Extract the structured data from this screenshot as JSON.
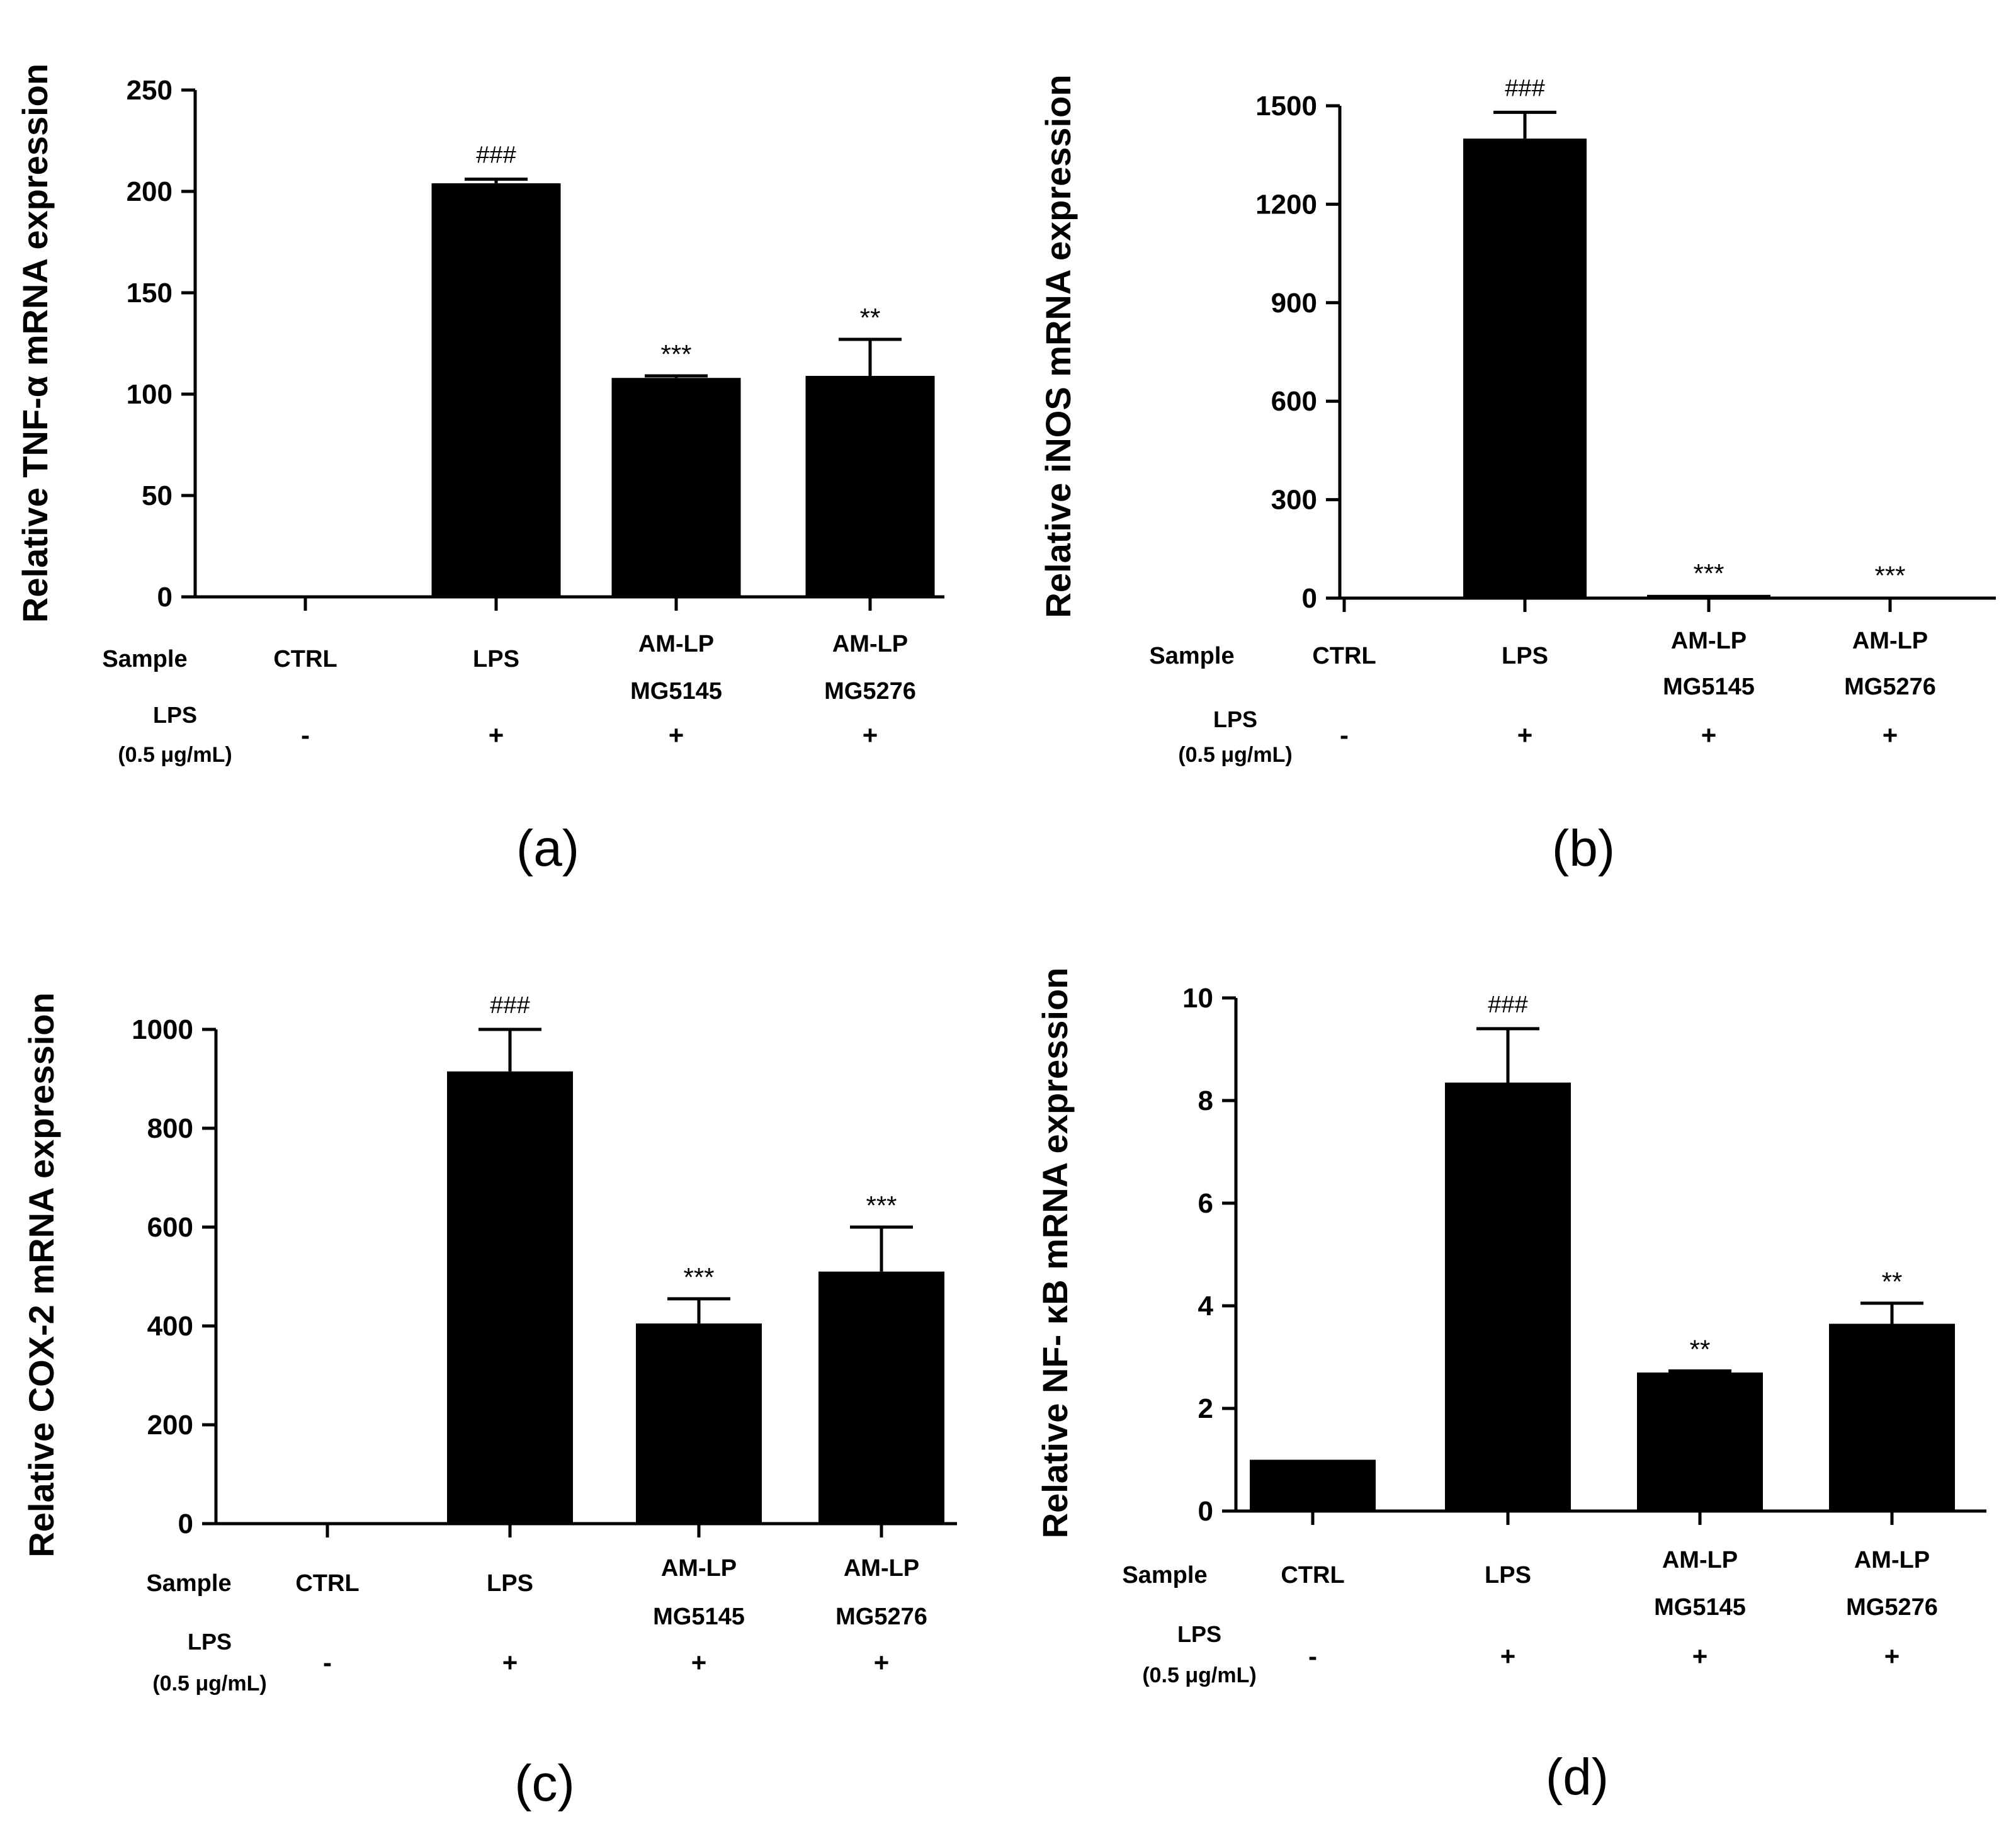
{
  "figure": {
    "colors": {
      "bar": "#000000",
      "axis": "#000000",
      "background": "#ffffff",
      "text": "#000000"
    },
    "row_labels": {
      "sample": "Sample",
      "lps_line1": "LPS",
      "lps_line2": "(0.5 μg/mL)"
    }
  },
  "chart_data": [
    {
      "panel": "(a)",
      "type": "bar",
      "ylabel": "Relative TNF-α mRNA expression",
      "ylim": [
        0,
        250
      ],
      "yticks": [
        0,
        50,
        100,
        150,
        200,
        250
      ],
      "categories": [
        [
          "CTRL"
        ],
        [
          "LPS"
        ],
        [
          "AM-LP",
          "MG5145"
        ],
        [
          "AM-LP",
          "MG5276"
        ]
      ],
      "lps": [
        "-",
        "+",
        "+",
        "+"
      ],
      "values": [
        0,
        204,
        108,
        109
      ],
      "errors": [
        0,
        2,
        1,
        18
      ],
      "significance": [
        "",
        "###",
        "***",
        "**"
      ]
    },
    {
      "panel": "(b)",
      "type": "bar",
      "ylabel": "Relative iNOS mRNA expression",
      "ylim": [
        0,
        1500
      ],
      "yticks": [
        0,
        300,
        600,
        900,
        1200,
        1500
      ],
      "categories": [
        [
          "CTRL"
        ],
        [
          "LPS"
        ],
        [
          "AM-LP",
          "MG5145"
        ],
        [
          "AM-LP",
          "MG5276"
        ]
      ],
      "lps": [
        "-",
        "+",
        "+",
        "+"
      ],
      "values": [
        0,
        1400,
        10,
        3
      ],
      "errors": [
        0,
        80,
        0,
        0
      ],
      "significance": [
        "",
        "###",
        "***",
        "***"
      ]
    },
    {
      "panel": "(c)",
      "type": "bar",
      "ylabel": "Relative COX-2 mRNA expression",
      "ylim": [
        0,
        1000
      ],
      "yticks": [
        0,
        200,
        400,
        600,
        800,
        1000
      ],
      "categories": [
        [
          "CTRL"
        ],
        [
          "LPS"
        ],
        [
          "AM-LP",
          "MG5145"
        ],
        [
          "AM-LP",
          "MG5276"
        ]
      ],
      "lps": [
        "-",
        "+",
        "+",
        "+"
      ],
      "values": [
        0,
        915,
        405,
        510
      ],
      "errors": [
        0,
        85,
        50,
        90
      ],
      "significance": [
        "",
        "###",
        "***",
        "***"
      ]
    },
    {
      "panel": "(d)",
      "type": "bar",
      "ylabel": "Relative NF- κB mRNA expression",
      "ylim": [
        0,
        10
      ],
      "yticks": [
        0,
        2,
        4,
        6,
        8,
        10
      ],
      "categories": [
        [
          "CTRL"
        ],
        [
          "LPS"
        ],
        [
          "AM-LP",
          "MG5145"
        ],
        [
          "AM-LP",
          "MG5276"
        ]
      ],
      "lps": [
        "-",
        "+",
        "+",
        "+"
      ],
      "values": [
        1.0,
        8.35,
        2.7,
        3.65
      ],
      "errors": [
        0,
        1.05,
        0.03,
        0.4
      ],
      "significance": [
        "",
        "###",
        "**",
        "**"
      ]
    }
  ]
}
